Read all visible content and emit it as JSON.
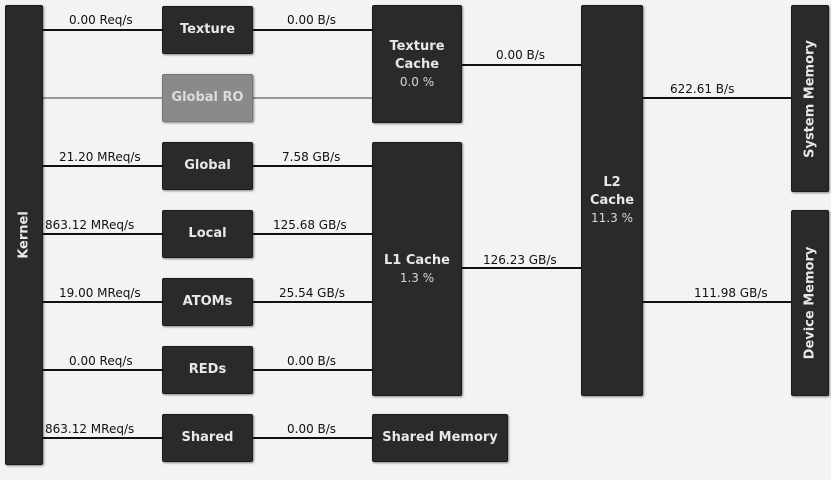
{
  "nodes": {
    "kernel": "Kernel",
    "texture": "Texture",
    "global_ro": "Global RO",
    "global": "Global",
    "local": "Local",
    "atoms": "ATOMs",
    "reds": "REDs",
    "shared": "Shared",
    "texture_cache": {
      "title_line1": "Texture",
      "title_line2": "Cache",
      "value": "0.0 %"
    },
    "l1_cache": {
      "title": "L1 Cache",
      "value": "1.3 %"
    },
    "shared_memory": "Shared Memory",
    "l2_cache": {
      "title": "L2 Cache",
      "value": "11.3 %"
    },
    "system_memory": "System Memory",
    "device_memory": "Device Memory"
  },
  "links": {
    "kernel_texture": "0.00 Req/s",
    "texture_texcache": "0.00 B/s",
    "kernel_global": "21.20 MReq/s",
    "global_l1": "7.58 GB/s",
    "kernel_local": "863.12 MReq/s",
    "local_l1": "125.68 GB/s",
    "kernel_atoms": "19.00 MReq/s",
    "atoms_l1": "25.54 GB/s",
    "kernel_reds": "0.00 Req/s",
    "reds_l1": "0.00 B/s",
    "kernel_shared": "863.12 MReq/s",
    "shared_sharedmem": "0.00 B/s",
    "texcache_l2": "0.00 B/s",
    "l1_l2": "126.23 GB/s",
    "l2_system": "622.61 B/s",
    "l2_device": "111.98 GB/s"
  }
}
